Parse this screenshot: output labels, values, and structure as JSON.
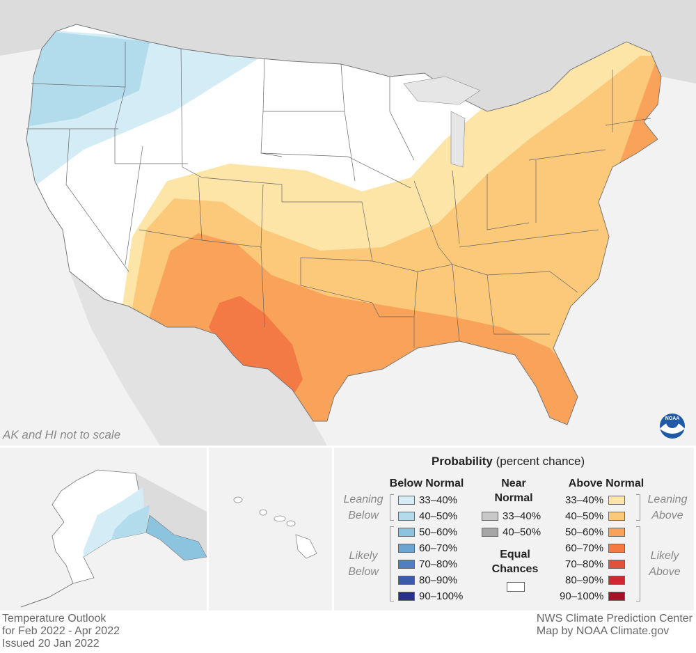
{
  "map": {
    "note": "AK and HI not to scale",
    "logo_text": "NOAA"
  },
  "legend": {
    "title": "Probability",
    "title_sub": "(percent chance)",
    "below_normal": {
      "heading": "Below Normal",
      "rows": [
        {
          "label": "33–40%",
          "color": "#d4ecf5"
        },
        {
          "label": "40–50%",
          "color": "#b2dcec"
        },
        {
          "label": "50–60%",
          "color": "#8cc4e0"
        },
        {
          "label": "60–70%",
          "color": "#6da5d2"
        },
        {
          "label": "70–80%",
          "color": "#4f7fc2"
        },
        {
          "label": "80–90%",
          "color": "#3a5aae"
        },
        {
          "label": "90–100%",
          "color": "#28308f"
        }
      ]
    },
    "near_normal": {
      "heading_line1": "Near",
      "heading_line2": "Normal",
      "rows": [
        {
          "label": "33–40%",
          "color": "#c8c8c8"
        },
        {
          "label": "40–50%",
          "color": "#a6a6a6"
        }
      ]
    },
    "equal_chances": {
      "line1": "Equal",
      "line2": "Chances",
      "color": "#ffffff"
    },
    "above_normal": {
      "heading": "Above Normal",
      "rows": [
        {
          "label": "33–40%",
          "color": "#fde5a8"
        },
        {
          "label": "40–50%",
          "color": "#fcc87a"
        },
        {
          "label": "50–60%",
          "color": "#f9a25a"
        },
        {
          "label": "60–70%",
          "color": "#f37a45"
        },
        {
          "label": "70–80%",
          "color": "#e2523a"
        },
        {
          "label": "80–90%",
          "color": "#cc2a2e"
        },
        {
          "label": "90–100%",
          "color": "#a8102a"
        }
      ]
    },
    "leaning_below": [
      "Leaning",
      "Below"
    ],
    "likely_below": [
      "Likely",
      "Below"
    ],
    "leaning_above": [
      "Leaning",
      "Above"
    ],
    "likely_above": [
      "Likely",
      "Above"
    ]
  },
  "credits": {
    "left": [
      "Temperature Outlook",
      "for Feb 2022 - Apr 2022",
      "Issued 20 Jan 2022"
    ],
    "right": [
      "NWS Climate Prediction Center",
      "Map by NOAA Climate.gov"
    ]
  }
}
